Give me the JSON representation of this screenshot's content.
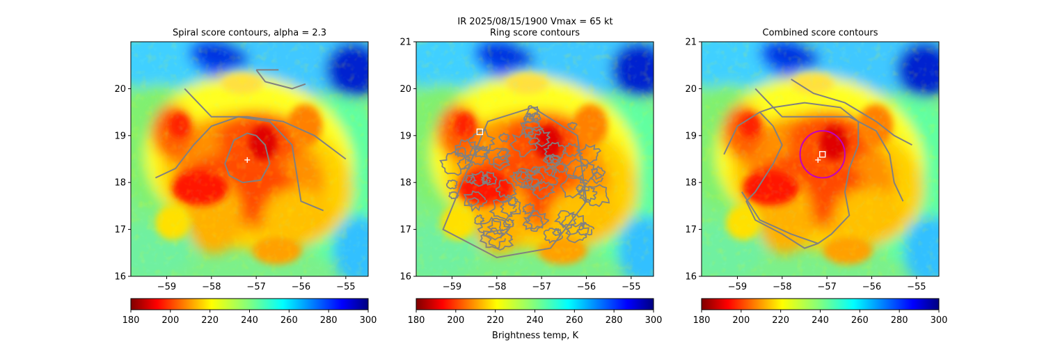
{
  "figure": {
    "suptitle_line1": "IR  2025/08/15/1900    Vmax = 65 kt",
    "colorbar_label": "Brightness temp, K"
  },
  "chart_data": [
    {
      "type": "heatmap",
      "title": "Spiral score contours, alpha =  2.3",
      "xlim": [
        -59.8,
        -54.5
      ],
      "ylim": [
        16.0,
        21.0
      ],
      "xticks": [
        -59,
        -58,
        -57,
        -56,
        -55
      ],
      "yticks": [
        16,
        17,
        18,
        19,
        20
      ],
      "colorbar_ticks": [
        180,
        200,
        220,
        240,
        260,
        280,
        300
      ],
      "colorbar_range": [
        180,
        300
      ],
      "colormap": "jet_r",
      "contour_color": "#808080",
      "center_marker": {
        "lon": -57.2,
        "lat": 18.48,
        "symbol": "+",
        "color": "#ffffff"
      }
    },
    {
      "type": "heatmap",
      "title": "Ring score contours",
      "xlim": [
        -59.8,
        -54.5
      ],
      "ylim": [
        16.0,
        21.0
      ],
      "xticks": [
        -59,
        -58,
        -57,
        -56,
        -55
      ],
      "yticks": [
        16,
        17,
        18,
        19,
        20,
        21
      ],
      "colorbar_ticks": [
        180,
        200,
        220,
        240,
        260,
        280,
        300
      ],
      "colorbar_range": [
        180,
        300
      ],
      "colormap": "jet_r",
      "contour_color": "#808080",
      "center_marker": {
        "lon": -58.38,
        "lat": 19.08,
        "symbol": "square",
        "color": "#ffffff"
      }
    },
    {
      "type": "heatmap",
      "title": "Combined score contours",
      "xlim": [
        -59.8,
        -54.5
      ],
      "ylim": [
        16.0,
        21.0
      ],
      "xticks": [
        -59,
        -58,
        -57,
        -56,
        -55
      ],
      "yticks": [
        16,
        17,
        18,
        19,
        20,
        21
      ],
      "colorbar_ticks": [
        180,
        200,
        220,
        240,
        260,
        280,
        300
      ],
      "colorbar_range": [
        180,
        300
      ],
      "colormap": "jet_r",
      "contour_color": "#808080",
      "center_marker": {
        "lon": -57.2,
        "lat": 18.48,
        "symbol": "+",
        "color": "#ffffff"
      },
      "square_marker": {
        "lon": -57.1,
        "lat": 18.6,
        "symbol": "square",
        "color": "#ffffff"
      },
      "ring": {
        "lon": -57.1,
        "lat": 18.6,
        "radius_deg": 0.5,
        "color": "#c000c0"
      }
    }
  ]
}
